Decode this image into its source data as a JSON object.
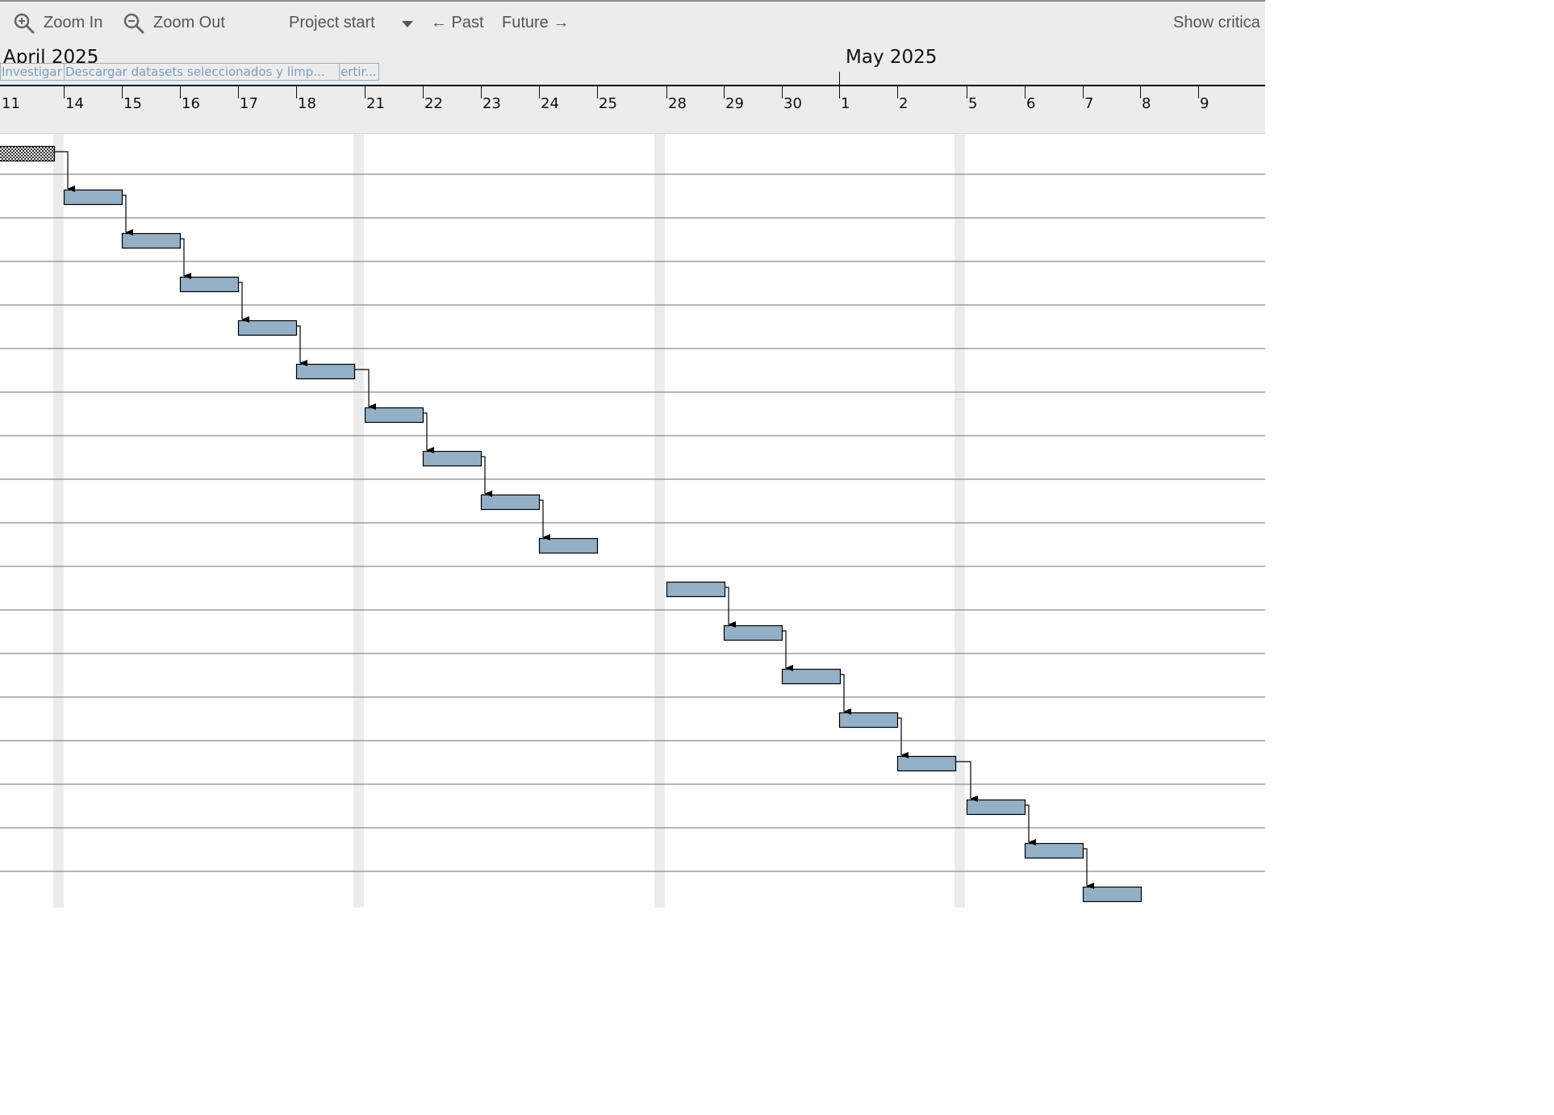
{
  "toolbar": {
    "zoom_in": "Zoom In",
    "zoom_out": "Zoom Out",
    "project_start": "Project start",
    "past": "← Past",
    "future": "Future →",
    "show_critical": "Show critica"
  },
  "timeline": {
    "months": [
      "April 2025",
      "May 2025"
    ],
    "days": [
      "11",
      "14",
      "15",
      "16",
      "17",
      "18",
      "21",
      "22",
      "23",
      "24",
      "25",
      "28",
      "29",
      "30",
      "1",
      "2",
      "5",
      "6",
      "7",
      "8",
      "9"
    ],
    "crumbs": [
      "Investigar",
      "Descargar datasets seleccionados y limp...",
      "ertir..."
    ]
  },
  "gantt": {
    "colors": {
      "task": "#93b0c6",
      "summary": "#2b2b2b",
      "weekend": "#ececec",
      "grid": "#6f6f6f"
    },
    "weekend_after": [
      "11",
      "18",
      "25",
      "2"
    ],
    "tasks": [
      {
        "start": "11",
        "end": "13",
        "type": "summary"
      },
      {
        "start": "14",
        "end": "14"
      },
      {
        "start": "15",
        "end": "15"
      },
      {
        "start": "16",
        "end": "16"
      },
      {
        "start": "17",
        "end": "17"
      },
      {
        "start": "18",
        "end": "18"
      },
      {
        "start": "21",
        "end": "21"
      },
      {
        "start": "22",
        "end": "22"
      },
      {
        "start": "23",
        "end": "23"
      },
      {
        "start": "24",
        "end": "24"
      },
      {
        "start": "28",
        "end": "28"
      },
      {
        "start": "29",
        "end": "29"
      },
      {
        "start": "30",
        "end": "30"
      },
      {
        "start": "1",
        "end": "1"
      },
      {
        "start": "2",
        "end": "2"
      },
      {
        "start": "5",
        "end": "5"
      },
      {
        "start": "6",
        "end": "6"
      },
      {
        "start": "7",
        "end": "7"
      }
    ]
  }
}
